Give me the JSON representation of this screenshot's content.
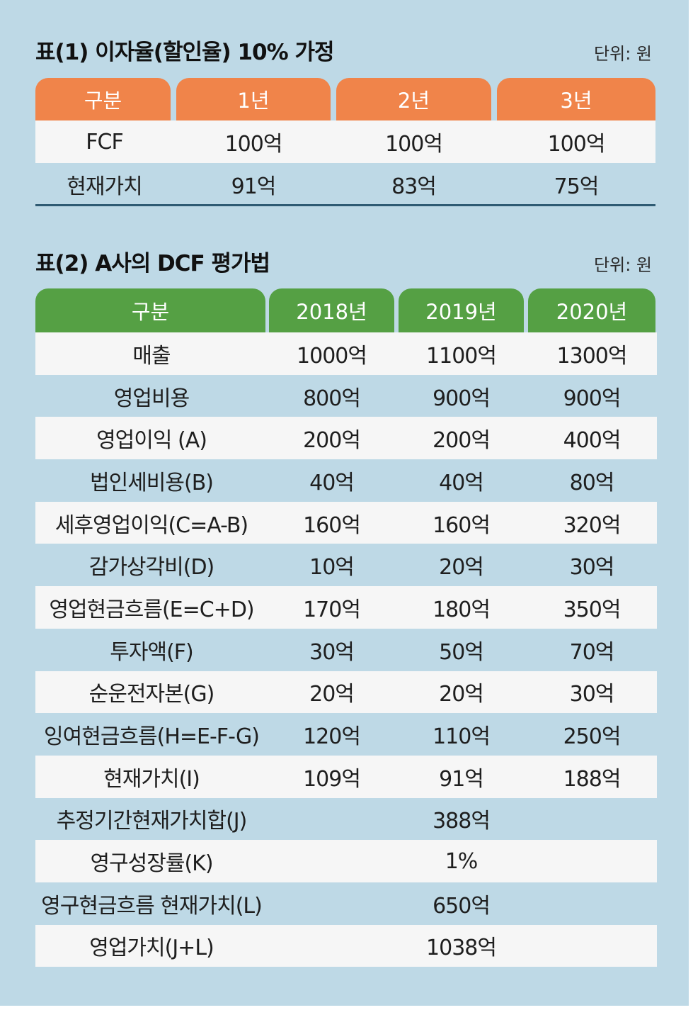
{
  "table1": {
    "title": "표(1) 이자율(할인율) 10% 가정",
    "unit": "단위: 원",
    "headers": [
      "구분",
      "1년",
      "2년",
      "3년"
    ],
    "rows": [
      {
        "label": "FCF",
        "values": [
          "100억",
          "100억",
          "100억"
        ]
      },
      {
        "label": "현재가치",
        "values": [
          "91억",
          "83억",
          "75억"
        ]
      }
    ],
    "colors": {
      "header_bg": "#f0844a"
    }
  },
  "table2": {
    "title": "표(2) A사의 DCF 평가법",
    "unit": "단위: 원",
    "headers": [
      "구분",
      "2018년",
      "2019년",
      "2020년"
    ],
    "rows": [
      {
        "label": "매출",
        "values": [
          "1000억",
          "1100억",
          "1300억"
        ]
      },
      {
        "label": "영업비용",
        "values": [
          "800억",
          "900억",
          "900억"
        ]
      },
      {
        "label": "영업이익 (A)",
        "values": [
          "200억",
          "200억",
          "400억"
        ]
      },
      {
        "label": "법인세비용(B)",
        "values": [
          "40억",
          "40억",
          "80억"
        ]
      },
      {
        "label": "세후영업이익(C=A-B)",
        "values": [
          "160억",
          "160억",
          "320억"
        ]
      },
      {
        "label": "감가상각비(D)",
        "values": [
          "10억",
          "20억",
          "30억"
        ]
      },
      {
        "label": "영업현금흐름(E=C+D)",
        "values": [
          "170억",
          "180억",
          "350억"
        ]
      },
      {
        "label": "투자액(F)",
        "values": [
          "30억",
          "50억",
          "70억"
        ]
      },
      {
        "label": "순운전자본(G)",
        "values": [
          "20억",
          "20억",
          "30억"
        ]
      },
      {
        "label": "잉여현금흐름(H=E-F-G)",
        "values": [
          "120억",
          "110억",
          "250억"
        ]
      },
      {
        "label": "현재가치(I)",
        "values": [
          "109억",
          "91억",
          "188억"
        ]
      }
    ],
    "summary_rows": [
      {
        "label": "추정기간현재가치합(J)",
        "value": "388억"
      },
      {
        "label": "영구성장률(K)",
        "value": "1%"
      },
      {
        "label": "영구현금흐름 현재가치(L)",
        "value": "650억"
      },
      {
        "label": "영업가치(J+L)",
        "value": "1038억"
      }
    ],
    "colors": {
      "header_bg": "#55a044"
    }
  },
  "colors": {
    "background": "#bed9e6",
    "row_white": "#f6f6f6",
    "rule": "#2f5b73"
  }
}
